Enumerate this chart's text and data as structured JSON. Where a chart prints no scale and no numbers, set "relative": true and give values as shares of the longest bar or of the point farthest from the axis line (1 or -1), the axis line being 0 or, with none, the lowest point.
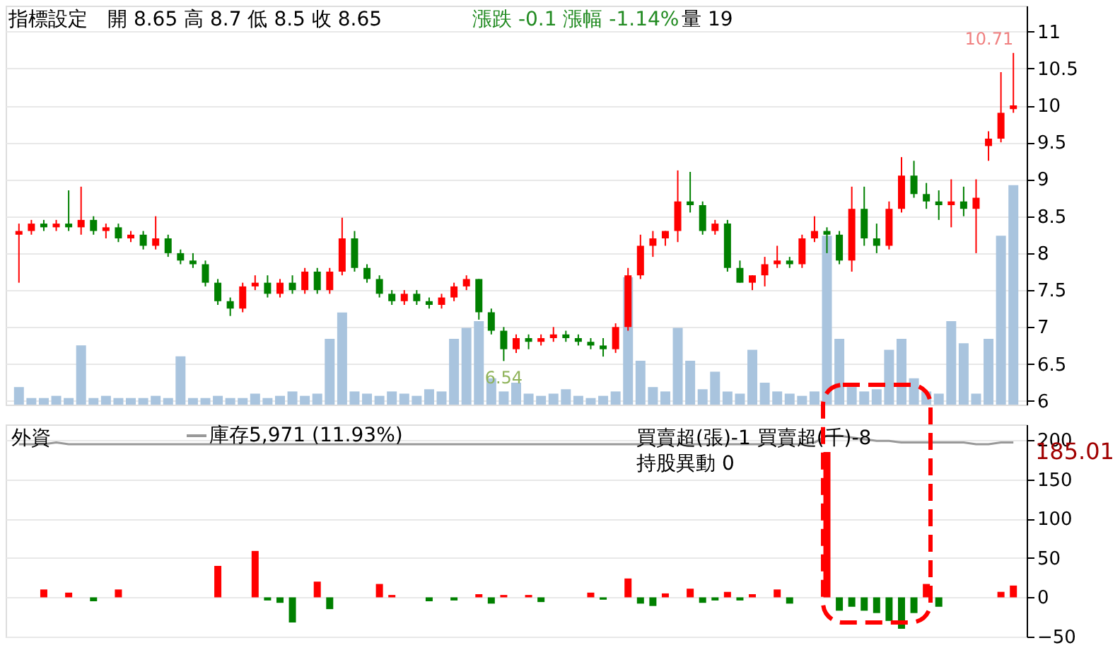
{
  "chart_data": [
    {
      "type": "candlestick",
      "categories": [
        null,
        null,
        null,
        null,
        null,
        null,
        null,
        null,
        null,
        null,
        null,
        null,
        null,
        null,
        null,
        null,
        null,
        null,
        null,
        null,
        null,
        null,
        null,
        null,
        null,
        null,
        null,
        null,
        null,
        null,
        null,
        null,
        null,
        null,
        null,
        null,
        null,
        null,
        null,
        null,
        null,
        null,
        null,
        null,
        null,
        null,
        null,
        null,
        null,
        null,
        null,
        null,
        null,
        null,
        null,
        null,
        null,
        null,
        null,
        null,
        null,
        null,
        null,
        null,
        null,
        null,
        null,
        null,
        null,
        null,
        null,
        null,
        null,
        null,
        null,
        null,
        null,
        null,
        null,
        null,
        null
      ],
      "ohlc": [
        [
          8.25,
          8.4,
          7.6,
          8.3
        ],
        [
          8.3,
          8.45,
          8.25,
          8.4
        ],
        [
          8.4,
          8.45,
          8.3,
          8.35
        ],
        [
          8.35,
          8.45,
          8.3,
          8.4
        ],
        [
          8.4,
          8.85,
          8.3,
          8.35
        ],
        [
          8.35,
          8.9,
          8.25,
          8.45
        ],
        [
          8.45,
          8.5,
          8.25,
          8.3
        ],
        [
          8.3,
          8.4,
          8.2,
          8.35
        ],
        [
          8.35,
          8.4,
          8.15,
          8.2
        ],
        [
          8.2,
          8.3,
          8.15,
          8.25
        ],
        [
          8.25,
          8.3,
          8.05,
          8.1
        ],
        [
          8.1,
          8.5,
          8.05,
          8.2
        ],
        [
          8.2,
          8.25,
          7.95,
          8.0
        ],
        [
          8.0,
          8.05,
          7.85,
          7.9
        ],
        [
          7.9,
          8.0,
          7.8,
          7.85
        ],
        [
          7.85,
          7.9,
          7.55,
          7.6
        ],
        [
          7.6,
          7.65,
          7.3,
          7.35
        ],
        [
          7.35,
          7.4,
          7.15,
          7.25
        ],
        [
          7.25,
          7.6,
          7.2,
          7.55
        ],
        [
          7.55,
          7.7,
          7.5,
          7.6
        ],
        [
          7.6,
          7.7,
          7.4,
          7.45
        ],
        [
          7.45,
          7.65,
          7.4,
          7.6
        ],
        [
          7.6,
          7.7,
          7.45,
          7.5
        ],
        [
          7.5,
          7.8,
          7.45,
          7.75
        ],
        [
          7.75,
          7.8,
          7.45,
          7.5
        ],
        [
          7.5,
          7.8,
          7.45,
          7.75
        ],
        [
          7.75,
          8.48,
          7.7,
          8.2
        ],
        [
          8.2,
          8.3,
          7.75,
          7.8
        ],
        [
          7.8,
          7.85,
          7.6,
          7.65
        ],
        [
          7.65,
          7.7,
          7.4,
          7.45
        ],
        [
          7.45,
          7.5,
          7.3,
          7.35
        ],
        [
          7.35,
          7.5,
          7.3,
          7.45
        ],
        [
          7.45,
          7.5,
          7.3,
          7.35
        ],
        [
          7.35,
          7.4,
          7.25,
          7.3
        ],
        [
          7.3,
          7.45,
          7.25,
          7.4
        ],
        [
          7.4,
          7.6,
          7.35,
          7.55
        ],
        [
          7.55,
          7.7,
          7.5,
          7.65
        ],
        [
          7.65,
          7.65,
          7.1,
          7.2
        ],
        [
          7.2,
          7.25,
          6.9,
          6.95
        ],
        [
          6.95,
          7.0,
          6.54,
          6.7
        ],
        [
          6.7,
          6.9,
          6.65,
          6.85
        ],
        [
          6.85,
          6.9,
          6.7,
          6.8
        ],
        [
          6.8,
          6.9,
          6.75,
          6.85
        ],
        [
          6.85,
          7.0,
          6.8,
          6.9
        ],
        [
          6.9,
          6.95,
          6.8,
          6.85
        ],
        [
          6.85,
          6.9,
          6.75,
          6.8
        ],
        [
          6.8,
          6.85,
          6.7,
          6.75
        ],
        [
          6.75,
          6.85,
          6.6,
          6.7
        ],
        [
          6.7,
          7.05,
          6.65,
          7.0
        ],
        [
          7.0,
          7.8,
          6.95,
          7.7
        ],
        [
          7.7,
          8.25,
          7.65,
          8.1
        ],
        [
          8.1,
          8.3,
          7.95,
          8.2
        ],
        [
          8.2,
          8.3,
          8.1,
          8.3
        ],
        [
          8.3,
          9.12,
          8.15,
          8.7
        ],
        [
          8.7,
          9.1,
          8.55,
          8.65
        ],
        [
          8.65,
          8.7,
          8.25,
          8.3
        ],
        [
          8.3,
          8.45,
          8.25,
          8.4
        ],
        [
          8.4,
          8.45,
          7.75,
          7.8
        ],
        [
          7.8,
          7.9,
          7.6,
          7.6
        ],
        [
          7.6,
          7.7,
          7.5,
          7.7
        ],
        [
          7.7,
          7.95,
          7.55,
          7.85
        ],
        [
          7.85,
          8.1,
          7.8,
          7.9
        ],
        [
          7.9,
          7.95,
          7.8,
          7.85
        ],
        [
          7.85,
          8.25,
          7.8,
          8.2
        ],
        [
          8.2,
          8.5,
          8.15,
          8.3
        ],
        [
          8.3,
          8.35,
          8.0,
          8.25
        ],
        [
          8.25,
          8.3,
          7.85,
          7.9
        ],
        [
          7.9,
          8.9,
          7.75,
          8.6
        ],
        [
          8.6,
          8.9,
          8.1,
          8.2
        ],
        [
          8.2,
          8.4,
          8.0,
          8.1
        ],
        [
          8.1,
          8.7,
          8.05,
          8.6
        ],
        [
          8.6,
          9.3,
          8.55,
          9.05
        ],
        [
          9.05,
          9.25,
          8.75,
          8.8
        ],
        [
          8.8,
          8.95,
          8.6,
          8.7
        ],
        [
          8.7,
          8.85,
          8.45,
          8.65
        ],
        [
          8.65,
          9.0,
          8.35,
          8.7
        ],
        [
          8.7,
          8.9,
          8.5,
          8.6
        ],
        [
          8.6,
          9.0,
          8.0,
          8.75
        ],
        [
          9.45,
          9.65,
          9.25,
          9.55
        ],
        [
          9.55,
          10.45,
          9.5,
          9.9
        ],
        [
          9.95,
          10.71,
          9.9,
          10.0
        ]
      ],
      "colors": [
        "#ff0000",
        "#ff0000",
        "#008000",
        "#ff0000",
        "#008000",
        "#ff0000",
        "#008000",
        "#ff0000",
        "#008000",
        "#ff0000",
        "#008000",
        "#ff0000",
        "#008000",
        "#008000",
        "#008000",
        "#008000",
        "#008000",
        "#008000",
        "#ff0000",
        "#ff0000",
        "#008000",
        "#ff0000",
        "#008000",
        "#ff0000",
        "#008000",
        "#ff0000",
        "#ff0000",
        "#008000",
        "#008000",
        "#008000",
        "#008000",
        "#ff0000",
        "#008000",
        "#008000",
        "#ff0000",
        "#ff0000",
        "#ff0000",
        "#008000",
        "#008000",
        "#008000",
        "#ff0000",
        "#008000",
        "#ff0000",
        "#ff0000",
        "#008000",
        "#008000",
        "#008000",
        "#008000",
        "#ff0000",
        "#ff0000",
        "#ff0000",
        "#ff0000",
        "#ff0000",
        "#ff0000",
        "#008000",
        "#008000",
        "#ff0000",
        "#008000",
        "#008000",
        "#ff0000",
        "#ff0000",
        "#ff0000",
        "#008000",
        "#ff0000",
        "#ff0000",
        "#008000",
        "#008000",
        "#ff0000",
        "#008000",
        "#008000",
        "#ff0000",
        "#ff0000",
        "#008000",
        "#008000",
        "#008000",
        "#ff0000",
        "#008000",
        "#ff0000",
        "#ff0000",
        "#ff0000",
        "#ff0000"
      ],
      "ylim": [
        5.95,
        11.35
      ],
      "yticks": [
        6,
        6.5,
        7,
        7.5,
        8,
        8.5,
        9,
        9.5,
        10,
        10.5,
        11
      ],
      "grid": "y",
      "tick_labels": "y",
      "annotations": [
        "指標設定",
        "開 8.65 高 8.7 低 8.5 收 8.65",
        "漲跌 -0.1 漲幅 -1.14%",
        "量 19",
        "10.71",
        "6.54"
      ]
    },
    {
      "type": "bar",
      "relative": true,
      "color": "#a9c4de",
      "categories": [
        null,
        null,
        null,
        null,
        null,
        null,
        null,
        null,
        null,
        null,
        null,
        null,
        null,
        null,
        null,
        null,
        null,
        null,
        null,
        null,
        null,
        null,
        null,
        null,
        null,
        null,
        null,
        null,
        null,
        null,
        null,
        null,
        null,
        null,
        null,
        null,
        null,
        null,
        null,
        null,
        null,
        null,
        null,
        null,
        null,
        null,
        null,
        null,
        null,
        null,
        null,
        null,
        null,
        null,
        null,
        null,
        null,
        null,
        null,
        null,
        null,
        null,
        null,
        null,
        null,
        null,
        null,
        null,
        null,
        null,
        null,
        null,
        null,
        null,
        null,
        null,
        null,
        null,
        null,
        null,
        null
      ],
      "values": [
        0.08,
        0.03,
        0.03,
        0.04,
        0.03,
        0.27,
        0.03,
        0.04,
        0.03,
        0.03,
        0.03,
        0.04,
        0.03,
        0.22,
        0.03,
        0.03,
        0.04,
        0.03,
        0.03,
        0.05,
        0.03,
        0.04,
        0.06,
        0.04,
        0.05,
        0.3,
        0.42,
        0.06,
        0.05,
        0.04,
        0.06,
        0.05,
        0.04,
        0.07,
        0.06,
        0.3,
        0.35,
        0.38,
        0.12,
        0.06,
        0.1,
        0.05,
        0.04,
        0.05,
        0.07,
        0.04,
        0.03,
        0.04,
        0.06,
        0.58,
        0.2,
        0.08,
        0.06,
        0.35,
        0.2,
        0.07,
        0.15,
        0.06,
        0.05,
        0.25,
        0.1,
        0.06,
        0.05,
        0.04,
        0.06,
        0.77,
        0.3,
        0.08,
        0.06,
        0.07,
        0.25,
        0.3,
        0.12,
        0.06,
        0.05,
        0.38,
        0.28,
        0.05,
        0.3,
        0.77,
        1
      ]
    },
    {
      "type": "bar",
      "categories": [
        null,
        null,
        null,
        null,
        null,
        null,
        null,
        null,
        null,
        null,
        null,
        null,
        null,
        null,
        null,
        null,
        null,
        null,
        null,
        null,
        null,
        null,
        null,
        null,
        null,
        null,
        null,
        null,
        null,
        null,
        null,
        null,
        null,
        null,
        null,
        null,
        null,
        null,
        null,
        null,
        null,
        null,
        null,
        null,
        null,
        null,
        null,
        null,
        null,
        null,
        null,
        null,
        null,
        null,
        null,
        null,
        null,
        null,
        null,
        null,
        null,
        null,
        null,
        null,
        null,
        null,
        null,
        null,
        null,
        null,
        null,
        null,
        null,
        null,
        null,
        null,
        null,
        null,
        null,
        null,
        null
      ],
      "series": [
        {
          "color": "#ff0000",
          "values": [
            null,
            null,
            10,
            null,
            6,
            null,
            null,
            null,
            10,
            null,
            null,
            null,
            null,
            null,
            null,
            null,
            40,
            null,
            null,
            59,
            null,
            null,
            null,
            null,
            20,
            null,
            null,
            null,
            null,
            17,
            3,
            null,
            null,
            null,
            null,
            null,
            null,
            4,
            null,
            3,
            null,
            3,
            null,
            null,
            null,
            null,
            6,
            null,
            null,
            24,
            null,
            null,
            5,
            null,
            11,
            null,
            null,
            7,
            null,
            4,
            null,
            10,
            null,
            null,
            null,
            185.01,
            null,
            null,
            null,
            null,
            null,
            null,
            null,
            17,
            null,
            null,
            null,
            null,
            null,
            7,
            15
          ]
        },
        {
          "color": "#008000",
          "values": [
            null,
            null,
            null,
            null,
            null,
            null,
            -5,
            null,
            null,
            null,
            null,
            null,
            null,
            null,
            null,
            null,
            null,
            null,
            null,
            null,
            -4,
            -7,
            -32,
            null,
            null,
            -15,
            null,
            null,
            null,
            null,
            null,
            null,
            null,
            -5,
            null,
            -4,
            null,
            null,
            -8,
            null,
            null,
            null,
            -6,
            null,
            null,
            null,
            null,
            -3,
            null,
            null,
            -8,
            -11,
            null,
            null,
            null,
            -7,
            -4,
            null,
            -4,
            null,
            null,
            null,
            -8,
            null,
            null,
            null,
            -17,
            -12,
            -17,
            -20,
            -30,
            -40,
            -20,
            null,
            -12,
            null,
            null,
            null,
            null,
            null,
            null
          ]
        }
      ],
      "ylim": [
        -50,
        220
      ],
      "yticks": [
        -50,
        0,
        50,
        100,
        150,
        200
      ],
      "grid": "y",
      "tick_labels": "y",
      "annotations": [
        "外資",
        "買賣超(張)-1 買賣超(千)-8",
        "持股異動 0",
        "185.01"
      ]
    },
    {
      "type": "line",
      "relative": true,
      "legend": "top left",
      "categories": [
        null,
        null,
        null,
        null,
        null,
        null,
        null,
        null,
        null,
        null,
        null,
        null,
        null,
        null,
        null,
        null,
        null,
        null,
        null,
        null,
        null,
        null,
        null,
        null,
        null,
        null,
        null,
        null,
        null,
        null,
        null,
        null,
        null,
        null,
        null,
        null,
        null,
        null,
        null,
        null,
        null,
        null,
        null,
        null,
        null,
        null,
        null,
        null,
        null,
        null,
        null,
        null,
        null,
        null,
        null,
        null,
        null,
        null,
        null,
        null,
        null,
        null,
        null,
        null,
        null,
        null,
        null,
        null,
        null,
        null,
        null,
        null,
        null,
        null,
        null,
        null,
        null,
        null,
        null,
        null,
        null
      ],
      "series": [
        {
          "name": "庫存5,971 (11.93%)",
          "color": "#999999",
          "values": [
            0,
            0,
            0,
            0.2,
            0,
            0,
            0,
            0,
            0,
            0,
            0,
            0,
            0,
            0,
            0,
            0,
            0,
            0,
            0,
            0,
            0,
            0,
            0,
            0,
            0,
            0,
            0,
            0,
            0,
            0,
            0,
            0,
            0,
            0,
            0,
            0,
            0,
            0,
            0,
            0,
            0,
            0,
            0,
            0,
            0,
            0,
            0,
            0,
            0,
            0,
            0,
            0,
            0,
            0,
            0,
            0,
            0,
            0,
            0,
            0,
            0,
            0,
            0,
            0,
            0.2,
            1,
            1,
            0.8,
            0.6,
            0.4,
            0.4,
            0.2,
            0.2,
            0.2,
            0.2,
            0.2,
            0.2,
            0,
            0,
            0.2,
            0.2
          ]
        }
      ]
    }
  ]
}
